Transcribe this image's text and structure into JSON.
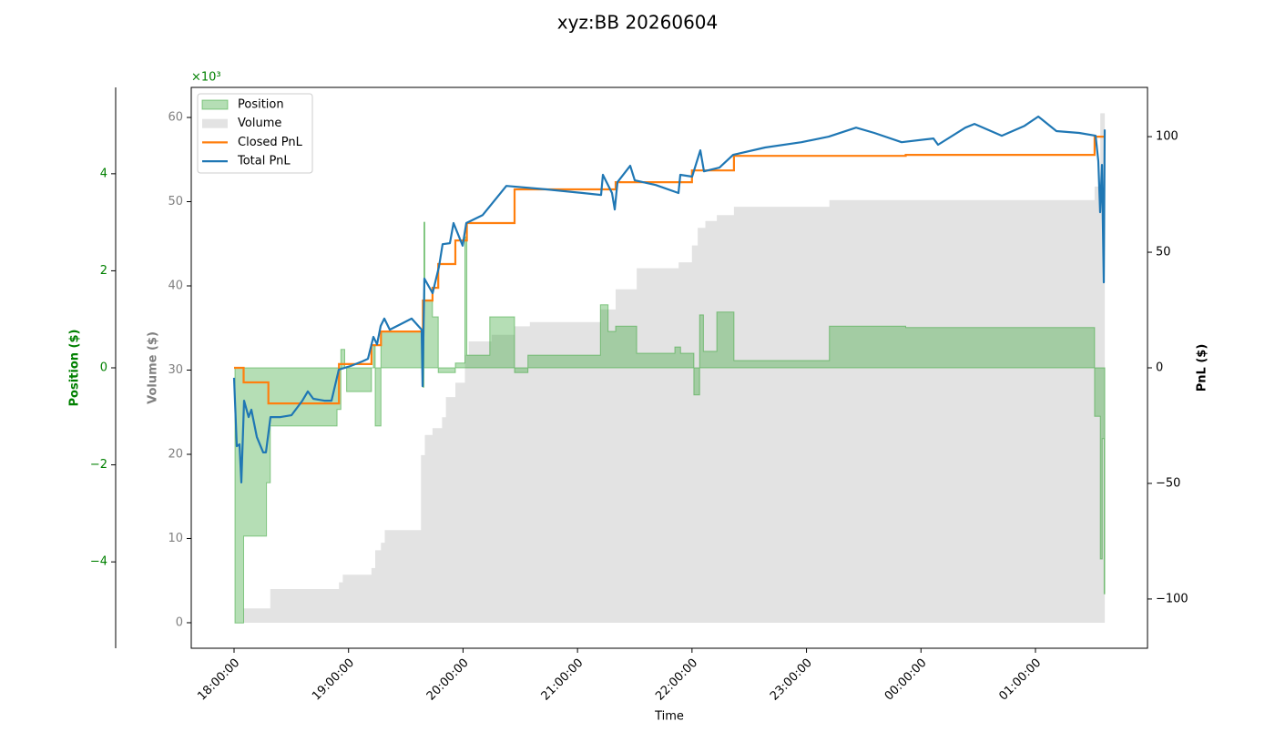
{
  "chart_data": {
    "type": "line",
    "title": "xyz:BB 20260604",
    "x_label": "Time",
    "xlim": [
      "17:37:34",
      "01:58:43"
    ],
    "xticks": [
      "18:00:00",
      "19:00:00",
      "20:00:00",
      "21:00:00",
      "22:00:00",
      "23:00:00",
      "00:00:00",
      "01:00:00"
    ],
    "legend": "upper left",
    "axes": {
      "position": {
        "label": "Position ($)",
        "offset_label": "×10³",
        "color": "#008000",
        "lim": [
          -5.78,
          5.78
        ],
        "ticks": [
          {
            "value": -4,
            "label": "−4"
          },
          {
            "value": -2,
            "label": "−2"
          },
          0,
          2,
          4
        ]
      },
      "volume": {
        "label": "Volume ($)",
        "color": "#808080",
        "lim": [
          -3.03,
          63.57
        ],
        "ticks": [
          0,
          10,
          20,
          30,
          40,
          50,
          60
        ]
      },
      "pnl": {
        "label": "PnL ($)",
        "color": "#000000",
        "lim": [
          -121.3,
          121.3
        ],
        "ticks": [
          {
            "value": -100,
            "label": "−100"
          },
          {
            "value": -50,
            "label": "−50"
          },
          0,
          50,
          100
        ]
      }
    },
    "series": [
      {
        "name": "Position",
        "kind": "area",
        "axis": "position",
        "color": "#2ca02c",
        "x": [
          "18:00:00",
          "18:00:30",
          "18:05:00",
          "18:17:00",
          "18:19:00",
          "18:54:00",
          "18:56:00",
          "18:58:00",
          "18:59:00",
          "19:12:00",
          "19:13:00",
          "19:14:00",
          "19:17:00",
          "19:39:00",
          "19:39:30",
          "19:40:00",
          "19:44:00",
          "19:47:00",
          "19:56:00",
          "20:01:00",
          "20:02:00",
          "20:14:00",
          "20:27:00",
          "20:34:00",
          "21:12:00",
          "21:16:00",
          "21:20:00",
          "21:31:00",
          "21:51:00",
          "21:54:00",
          "22:01:00",
          "22:04:00",
          "22:06:00",
          "22:13:00",
          "22:22:00",
          "23:12:00",
          "23:52:00",
          "01:31:00",
          "01:34:00",
          "01:35:00",
          "01:36:00",
          "01:36:20"
        ],
        "values": [
          0,
          -5.26,
          -3.47,
          -2.37,
          -1.2,
          -0.86,
          0.38,
          0,
          -0.49,
          0,
          0.45,
          -1.2,
          0.75,
          -0.4,
          3.0,
          1.4,
          1.05,
          -0.1,
          0.1,
          2.7,
          0.26,
          1.05,
          -0.1,
          0.26,
          1.3,
          0.75,
          0.86,
          0.3,
          0.43,
          0.3,
          -0.56,
          1.09,
          0.34,
          1.15,
          0.15,
          0.86,
          0.83,
          -1.0,
          -3.94,
          -1.46,
          -4.66,
          -4.66
        ]
      },
      {
        "name": "Volume",
        "kind": "area",
        "axis": "volume",
        "color": "#b0b0b0",
        "x": [
          "18:00:00",
          "18:05:00",
          "18:19:00",
          "18:55:00",
          "18:57:00",
          "19:12:00",
          "19:14:00",
          "19:17:00",
          "19:19:00",
          "19:38:00",
          "19:40:00",
          "19:44:00",
          "19:49:00",
          "19:51:00",
          "19:56:00",
          "20:01:00",
          "20:03:00",
          "20:15:00",
          "20:27:00",
          "20:35:00",
          "21:12:00",
          "21:20:00",
          "21:31:00",
          "21:53:00",
          "22:00:00",
          "22:03:00",
          "22:07:00",
          "22:13:00",
          "22:22:00",
          "23:12:00",
          "01:31:00",
          "01:34:00",
          "01:36:20"
        ],
        "values": [
          0,
          1.7,
          4.0,
          4.8,
          5.7,
          6.5,
          8.6,
          9.5,
          11.0,
          19.9,
          22.3,
          23.1,
          24.4,
          26.8,
          28.5,
          31.8,
          33.4,
          34.2,
          35.2,
          35.7,
          37.2,
          39.6,
          42.1,
          42.8,
          44.8,
          46.9,
          47.7,
          48.4,
          49.4,
          50.2,
          51.8,
          60.5,
          60.5
        ]
      },
      {
        "name": "Closed PnL",
        "kind": "step",
        "axis": "pnl",
        "color": "#ff7f0e",
        "x": [
          "18:00:00",
          "18:05:00",
          "18:18:00",
          "18:55:00",
          "19:12:00",
          "19:17:00",
          "19:39:00",
          "19:44:00",
          "19:47:00",
          "19:56:00",
          "20:02:00",
          "20:27:00",
          "21:20:00",
          "22:00:00",
          "22:22:00",
          "23:52:00",
          "01:31:00",
          "01:36:00"
        ],
        "values": [
          0,
          -6.3,
          -15.4,
          1.6,
          9.8,
          15.7,
          29.1,
          34.6,
          44.9,
          55.1,
          62.6,
          77.2,
          80.3,
          85.4,
          91.7,
          92.1,
          100,
          100
        ]
      },
      {
        "name": "Total PnL",
        "kind": "line",
        "axis": "pnl",
        "color": "#1f77b4",
        "x": [
          "18:00:00",
          "18:01:26",
          "18:02:52",
          "18:03:49",
          "18:05:15",
          "18:07:38",
          "18:09:04",
          "18:11:56",
          "18:15:16",
          "18:16:42",
          "18:19:05",
          "18:24:20",
          "18:30:04",
          "18:35:48",
          "18:38:40",
          "18:41:32",
          "18:47:15",
          "18:51:04",
          "18:54:53",
          "19:01:05",
          "19:07:18",
          "19:10:10",
          "19:13:02",
          "19:14:56",
          "19:16:51",
          "19:18:45",
          "19:21:37",
          "19:29:15",
          "19:33:04",
          "19:38:19",
          "19:38:48",
          "19:39:45",
          "19:44:03",
          "19:47:24",
          "19:49:19",
          "19:53:08",
          "19:55:02",
          "19:59:48",
          "20:01:43",
          "20:10:18",
          "20:18:53",
          "20:22:42",
          "20:43:42",
          "21:02:48",
          "21:12:22",
          "21:13:19",
          "21:18:05",
          "21:19:31",
          "21:20:57",
          "21:27:38",
          "21:30:01",
          "21:41:00",
          "21:52:55",
          "21:53:52",
          "22:00:05",
          "22:04:23",
          "22:06:18",
          "22:14:24",
          "22:21:34",
          "22:38:17",
          "22:57:22",
          "23:11:41",
          "23:26:00",
          "23:35:32",
          "23:49:51",
          "00:06:33",
          "00:08:56",
          "00:23:16",
          "00:28:02",
          "00:42:22",
          "00:54:18",
          "01:01:28",
          "01:11:00",
          "01:22:56",
          "01:31:31",
          "01:32:58",
          "01:33:55",
          "01:34:52",
          "01:35:49",
          "01:36:18"
        ],
        "values": [
          -4.3,
          -33.9,
          -33.1,
          -49.6,
          -14.2,
          -21.3,
          -18.1,
          -29.9,
          -36.6,
          -36.6,
          -21.3,
          -21.3,
          -20.5,
          -14.2,
          -10.2,
          -13.4,
          -14.2,
          -14.2,
          -0.8,
          0.8,
          2.8,
          3.9,
          13.4,
          10.2,
          18.1,
          21.3,
          16.5,
          19.7,
          21.3,
          16.5,
          -7.9,
          38.6,
          32.3,
          43.7,
          53.5,
          53.9,
          62.6,
          52.8,
          62.6,
          66.1,
          74.8,
          78.7,
          77.2,
          75.6,
          74.8,
          83.5,
          75.6,
          68.5,
          80.3,
          87.4,
          81.1,
          79.1,
          75.6,
          83.5,
          82.7,
          94.1,
          85.0,
          86.6,
          92.1,
          95.3,
          97.6,
          100.0,
          103.9,
          101.6,
          97.6,
          99.2,
          96.5,
          103.9,
          105.5,
          100.4,
          104.7,
          108.7,
          102.4,
          101.6,
          100.4,
          89.4,
          67.3,
          87.8,
          37.0,
          103.1
        ]
      }
    ]
  }
}
